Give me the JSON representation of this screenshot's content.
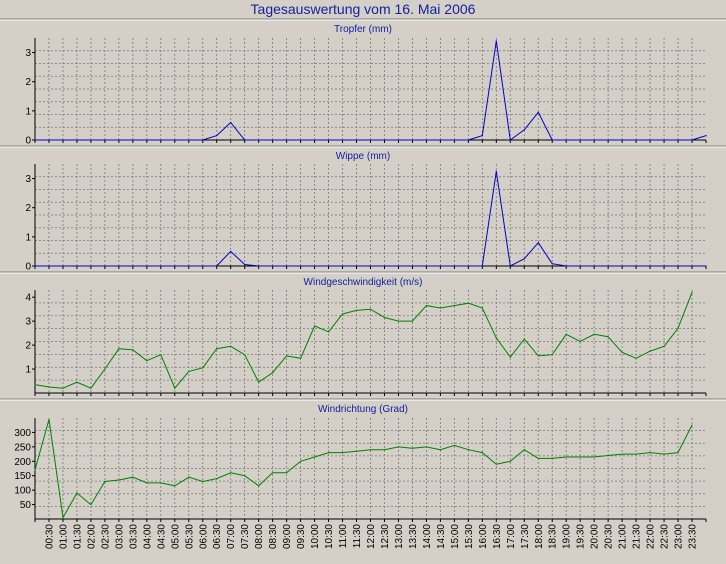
{
  "page_title": "Tagesauswertung vom 16. Mai 2006",
  "chart_data": [
    {
      "type": "line",
      "title": "Tropfer (mm)",
      "color": "#0000cc",
      "ylim": [
        0,
        3.5
      ],
      "yticks": [
        0,
        1,
        2,
        3
      ],
      "grid": true,
      "x_labels": [
        "00:30",
        "01:00",
        "01:30",
        "02:00",
        "02:30",
        "03:00",
        "03:30",
        "04:00",
        "04:30",
        "05:00",
        "05:30",
        "06:00",
        "06:30",
        "07:00",
        "07:30",
        "08:00",
        "08:30",
        "09:00",
        "09:30",
        "10:00",
        "10:30",
        "11:00",
        "11:30",
        "12:00",
        "12:30",
        "13:00",
        "13:30",
        "14:00",
        "14:30",
        "15:00",
        "15:30",
        "16:00",
        "16:30",
        "17:00",
        "17:30",
        "18:00",
        "18:30",
        "19:00",
        "19:30",
        "20:00",
        "20:30",
        "21:00",
        "21:30",
        "22:00",
        "22:30",
        "23:00",
        "23:30"
      ],
      "points": [
        [
          0,
          0
        ],
        [
          12,
          0
        ],
        [
          13,
          0.15
        ],
        [
          14,
          0.6
        ],
        [
          15,
          0
        ],
        [
          31,
          0
        ],
        [
          32,
          0.15
        ],
        [
          33,
          3.4
        ],
        [
          34,
          0
        ],
        [
          35,
          0.35
        ],
        [
          36,
          0.95
        ],
        [
          37,
          0
        ],
        [
          47,
          0
        ],
        [
          48,
          0.15
        ]
      ]
    },
    {
      "type": "line",
      "title": "Wippe (mm)",
      "color": "#0000cc",
      "ylim": [
        0,
        3.5
      ],
      "yticks": [
        0,
        1,
        2,
        3
      ],
      "grid": true,
      "points": [
        [
          0,
          0
        ],
        [
          13,
          0
        ],
        [
          14,
          0.5
        ],
        [
          15,
          0.05
        ],
        [
          16,
          0
        ],
        [
          32,
          0
        ],
        [
          33,
          3.25
        ],
        [
          34,
          0
        ],
        [
          35,
          0.25
        ],
        [
          36,
          0.8
        ],
        [
          37,
          0.08
        ],
        [
          38,
          0
        ],
        [
          48,
          0
        ]
      ]
    },
    {
      "type": "line",
      "title": "Windgeschwindigkeit (m/s)",
      "color": "#008000",
      "ylim": [
        0,
        4.3
      ],
      "yticks": [
        1,
        2,
        3,
        4
      ],
      "grid": true,
      "points": [
        [
          0,
          0.35
        ],
        [
          1,
          0.25
        ],
        [
          2,
          0.2
        ],
        [
          3,
          0.45
        ],
        [
          4,
          0.2
        ],
        [
          5,
          1.0
        ],
        [
          6,
          1.85
        ],
        [
          7,
          1.8
        ],
        [
          8,
          1.35
        ],
        [
          9,
          1.6
        ],
        [
          10,
          0.2
        ],
        [
          11,
          0.9
        ],
        [
          12,
          1.05
        ],
        [
          13,
          1.85
        ],
        [
          14,
          1.95
        ],
        [
          15,
          1.6
        ],
        [
          16,
          0.45
        ],
        [
          17,
          0.85
        ],
        [
          18,
          1.55
        ],
        [
          19,
          1.45
        ],
        [
          20,
          2.8
        ],
        [
          21,
          2.55
        ],
        [
          22,
          3.3
        ],
        [
          23,
          3.45
        ],
        [
          24,
          3.5
        ],
        [
          25,
          3.15
        ],
        [
          26,
          3.0
        ],
        [
          27,
          3.0
        ],
        [
          28,
          3.65
        ],
        [
          29,
          3.55
        ],
        [
          30,
          3.65
        ],
        [
          31,
          3.75
        ],
        [
          32,
          3.55
        ],
        [
          33,
          2.3
        ],
        [
          34,
          1.5
        ],
        [
          35,
          2.25
        ],
        [
          36,
          1.55
        ],
        [
          37,
          1.6
        ],
        [
          38,
          2.45
        ],
        [
          39,
          2.15
        ],
        [
          40,
          2.45
        ],
        [
          41,
          2.35
        ],
        [
          42,
          1.7
        ],
        [
          43,
          1.45
        ],
        [
          44,
          1.75
        ],
        [
          45,
          1.95
        ],
        [
          46,
          2.7
        ],
        [
          47,
          4.2
        ]
      ]
    },
    {
      "type": "line",
      "title": "Windrichtung (Grad)",
      "color": "#008000",
      "ylim": [
        0,
        350
      ],
      "yticks": [
        50,
        100,
        150,
        200,
        250,
        300
      ],
      "grid": true,
      "points": [
        [
          0,
          170
        ],
        [
          1,
          345
        ],
        [
          2,
          5
        ],
        [
          3,
          90
        ],
        [
          4,
          50
        ],
        [
          5,
          130
        ],
        [
          6,
          135
        ],
        [
          7,
          145
        ],
        [
          8,
          125
        ],
        [
          9,
          125
        ],
        [
          10,
          115
        ],
        [
          11,
          145
        ],
        [
          12,
          130
        ],
        [
          13,
          140
        ],
        [
          14,
          160
        ],
        [
          15,
          150
        ],
        [
          16,
          115
        ],
        [
          17,
          160
        ],
        [
          18,
          160
        ],
        [
          19,
          200
        ],
        [
          20,
          215
        ],
        [
          21,
          230
        ],
        [
          22,
          230
        ],
        [
          23,
          235
        ],
        [
          24,
          240
        ],
        [
          25,
          240
        ],
        [
          26,
          250
        ],
        [
          27,
          245
        ],
        [
          28,
          250
        ],
        [
          29,
          240
        ],
        [
          30,
          255
        ],
        [
          31,
          240
        ],
        [
          32,
          230
        ],
        [
          33,
          190
        ],
        [
          34,
          200
        ],
        [
          35,
          240
        ],
        [
          36,
          210
        ],
        [
          37,
          210
        ],
        [
          38,
          215
        ],
        [
          39,
          215
        ],
        [
          40,
          215
        ],
        [
          41,
          220
        ],
        [
          42,
          225
        ],
        [
          43,
          225
        ],
        [
          44,
          230
        ],
        [
          45,
          225
        ],
        [
          46,
          230
        ],
        [
          47,
          325
        ]
      ]
    }
  ]
}
